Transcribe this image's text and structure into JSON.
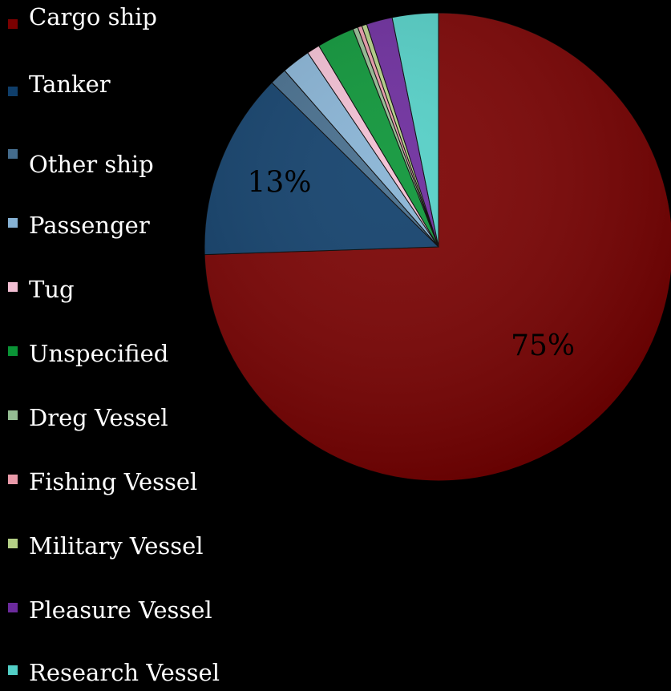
{
  "chart_data": {
    "type": "pie",
    "title": "",
    "legend_position": "left",
    "slices": [
      {
        "name": "Cargo ship",
        "value": 75,
        "color": "#7a0000",
        "label": "75%"
      },
      {
        "name": "Tanker",
        "value": 13,
        "color": "#0f3e6a",
        "label": "13%"
      },
      {
        "name": "Other ship",
        "value": 1.2,
        "color": "#446c8c",
        "label": ""
      },
      {
        "name": "Passenger",
        "value": 2.0,
        "color": "#86b2d4",
        "label": ""
      },
      {
        "name": "Tug",
        "value": 0.9,
        "color": "#f2bfd3",
        "label": ""
      },
      {
        "name": "Unspecified",
        "value": 2.6,
        "color": "#0a9436",
        "label": ""
      },
      {
        "name": "Dreg Vessel",
        "value": 0.35,
        "color": "#94bc92",
        "label": ""
      },
      {
        "name": "Fishing Vessel",
        "value": 0.3,
        "color": "#e99aa9",
        "label": ""
      },
      {
        "name": "Military Vessel",
        "value": 0.35,
        "color": "#b4cf86",
        "label": ""
      },
      {
        "name": "Pleasure Vessel",
        "value": 1.8,
        "color": "#6b2a9c",
        "label": ""
      },
      {
        "name": "Research Vessel",
        "value": 3.2,
        "color": "#52cfc6",
        "label": ""
      }
    ]
  }
}
